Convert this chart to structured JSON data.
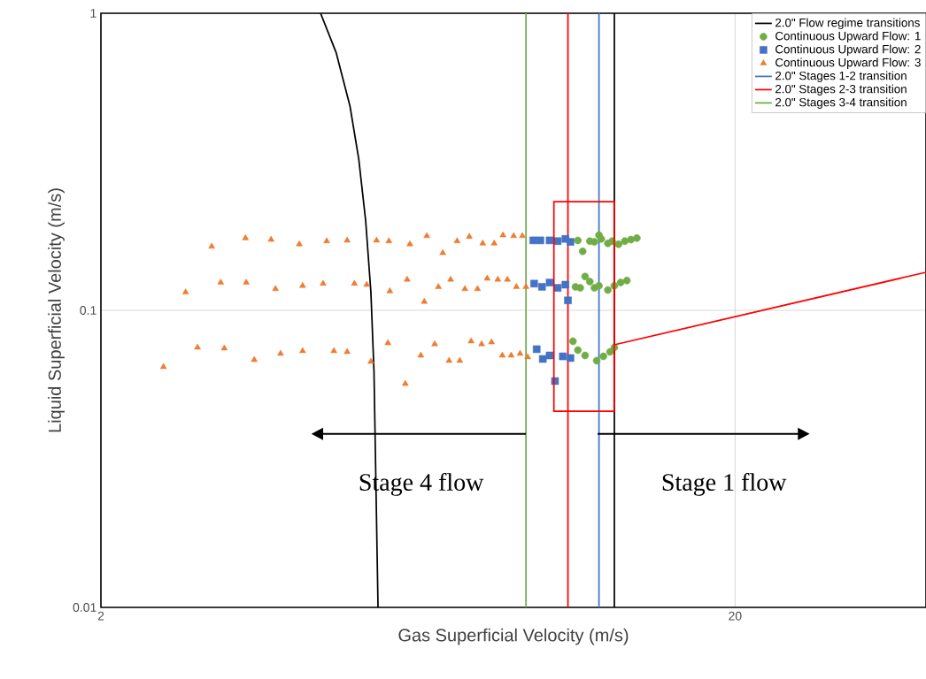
{
  "chart_data": {
    "type": "scatter",
    "xlabel": "Gas Superficial Velocity (m/s)",
    "ylabel": "Liquid Superficial Velocity (m/s)",
    "log": "xy",
    "xlim": [
      2,
      40
    ],
    "ylim": [
      0.01,
      1
    ],
    "xticks": [
      2,
      20
    ],
    "yticks": [
      0.01,
      0.1,
      1
    ],
    "grid": true,
    "legend": "top right",
    "annotations": [
      "Stage 4 flow",
      "Stage 1 flow"
    ],
    "series": [
      {
        "name": "2.0\" Flow regime transitions",
        "type": "line",
        "color": "#000000",
        "x": [
          4.44,
          4.7,
          4.94,
          5.1,
          5.23,
          5.33,
          5.39,
          5.42,
          5.47
        ],
        "values": [
          1,
          0.735,
          0.487,
          0.323,
          0.2,
          0.115,
          0.0623,
          0.0314,
          0.01
        ]
      },
      {
        "type": "line",
        "color": "#000000",
        "x": [
          12.9,
          12.9
        ],
        "values": [
          0.01,
          1
        ]
      },
      {
        "name": "Continuous Upward Flow: 1",
        "marker": "circle",
        "color": "#70ad47",
        "x": [
          11.3,
          11.5,
          11.8,
          12.0,
          12.2,
          12.3,
          12.6,
          12.8,
          13.1,
          13.4,
          13.7,
          14.0,
          11.2,
          11.4,
          11.6,
          11.8,
          12.0,
          12.2,
          12.6,
          12.9,
          13.2,
          13.5,
          11.1,
          11.3,
          11.6,
          12.1,
          12.4,
          12.7,
          12.9
        ],
        "values": [
          0.172,
          0.158,
          0.171,
          0.17,
          0.179,
          0.174,
          0.168,
          0.171,
          0.167,
          0.171,
          0.173,
          0.175,
          0.12,
          0.119,
          0.13,
          0.125,
          0.119,
          0.121,
          0.117,
          0.121,
          0.124,
          0.126,
          0.0787,
          0.0735,
          0.0705,
          0.0677,
          0.07,
          0.0725,
          0.075
        ]
      },
      {
        "name": "Continuous Upward Flow: 2",
        "marker": "square",
        "color": "#4472c4",
        "x": [
          9.61,
          9.86,
          10.2,
          10.5,
          10.8,
          11.0,
          9.64,
          9.92,
          10.2,
          10.5,
          10.8,
          10.9,
          9.73,
          9.95,
          10.2,
          10.4,
          10.7,
          11.0
        ],
        "values": [
          0.172,
          0.172,
          0.172,
          0.171,
          0.174,
          0.17,
          0.123,
          0.12,
          0.124,
          0.119,
          0.122,
          0.108,
          0.074,
          0.0686,
          0.0705,
          0.0578,
          0.07,
          0.0691
        ]
      },
      {
        "name": "Continuous Upward Flow: 3",
        "marker": "triangle",
        "color": "#ed7d31",
        "x": [
          2.99,
          3.38,
          3.71,
          4.11,
          4.54,
          4.89,
          5.44,
          5.69,
          6.14,
          6.53,
          6.92,
          7.29,
          7.62,
          8.0,
          8.34,
          8.61,
          8.95,
          9.24,
          2.72,
          3.09,
          3.39,
          3.77,
          4.16,
          4.48,
          5.02,
          5.25,
          5.71,
          6.08,
          6.47,
          6.81,
          7.12,
          7.5,
          7.85,
          8.13,
          8.45,
          8.75,
          9.04,
          9.36,
          2.51,
          2.84,
          3.13,
          3.49,
          3.84,
          4.16,
          4.66,
          4.89,
          5.33,
          5.67,
          6.04,
          6.39,
          6.72,
          7.08,
          7.36,
          7.67,
          7.97,
          8.26,
          8.59,
          8.87,
          9.16,
          9.42
        ],
        "values": [
          0.164,
          0.175,
          0.173,
          0.167,
          0.171,
          0.172,
          0.172,
          0.171,
          0.167,
          0.178,
          0.156,
          0.171,
          0.177,
          0.168,
          0.168,
          0.179,
          0.178,
          0.178,
          0.115,
          0.124,
          0.124,
          0.118,
          0.121,
          0.123,
          0.123,
          0.122,
          0.116,
          0.127,
          0.107,
          0.12,
          0.127,
          0.118,
          0.118,
          0.128,
          0.127,
          0.127,
          0.12,
          0.12,
          0.0645,
          0.075,
          0.0745,
          0.0681,
          0.0715,
          0.073,
          0.073,
          0.0725,
          0.0672,
          0.0776,
          0.0566,
          0.0705,
          0.077,
          0.0677,
          0.0677,
          0.0787,
          0.077,
          0.0781,
          0.0705,
          0.0705,
          0.0715,
          0.0696
        ]
      },
      {
        "name": "2.0\" Stages 1-2 transition",
        "type": "line",
        "color": "#4472c4",
        "x": [
          12.2,
          12.2
        ],
        "values": [
          0.01,
          1
        ]
      },
      {
        "name": "2.0\" Stages 2-3 transition",
        "type": "line",
        "color": "#ff0000",
        "x": [
          10.9,
          10.9
        ],
        "values": [
          0.01,
          1
        ]
      },
      {
        "name": "2.0\" Stages 3-4 transition",
        "type": "line",
        "color": "#70ad47",
        "x": [
          9.36,
          9.36
        ],
        "values": [
          0.01,
          1
        ]
      }
    ]
  }
}
